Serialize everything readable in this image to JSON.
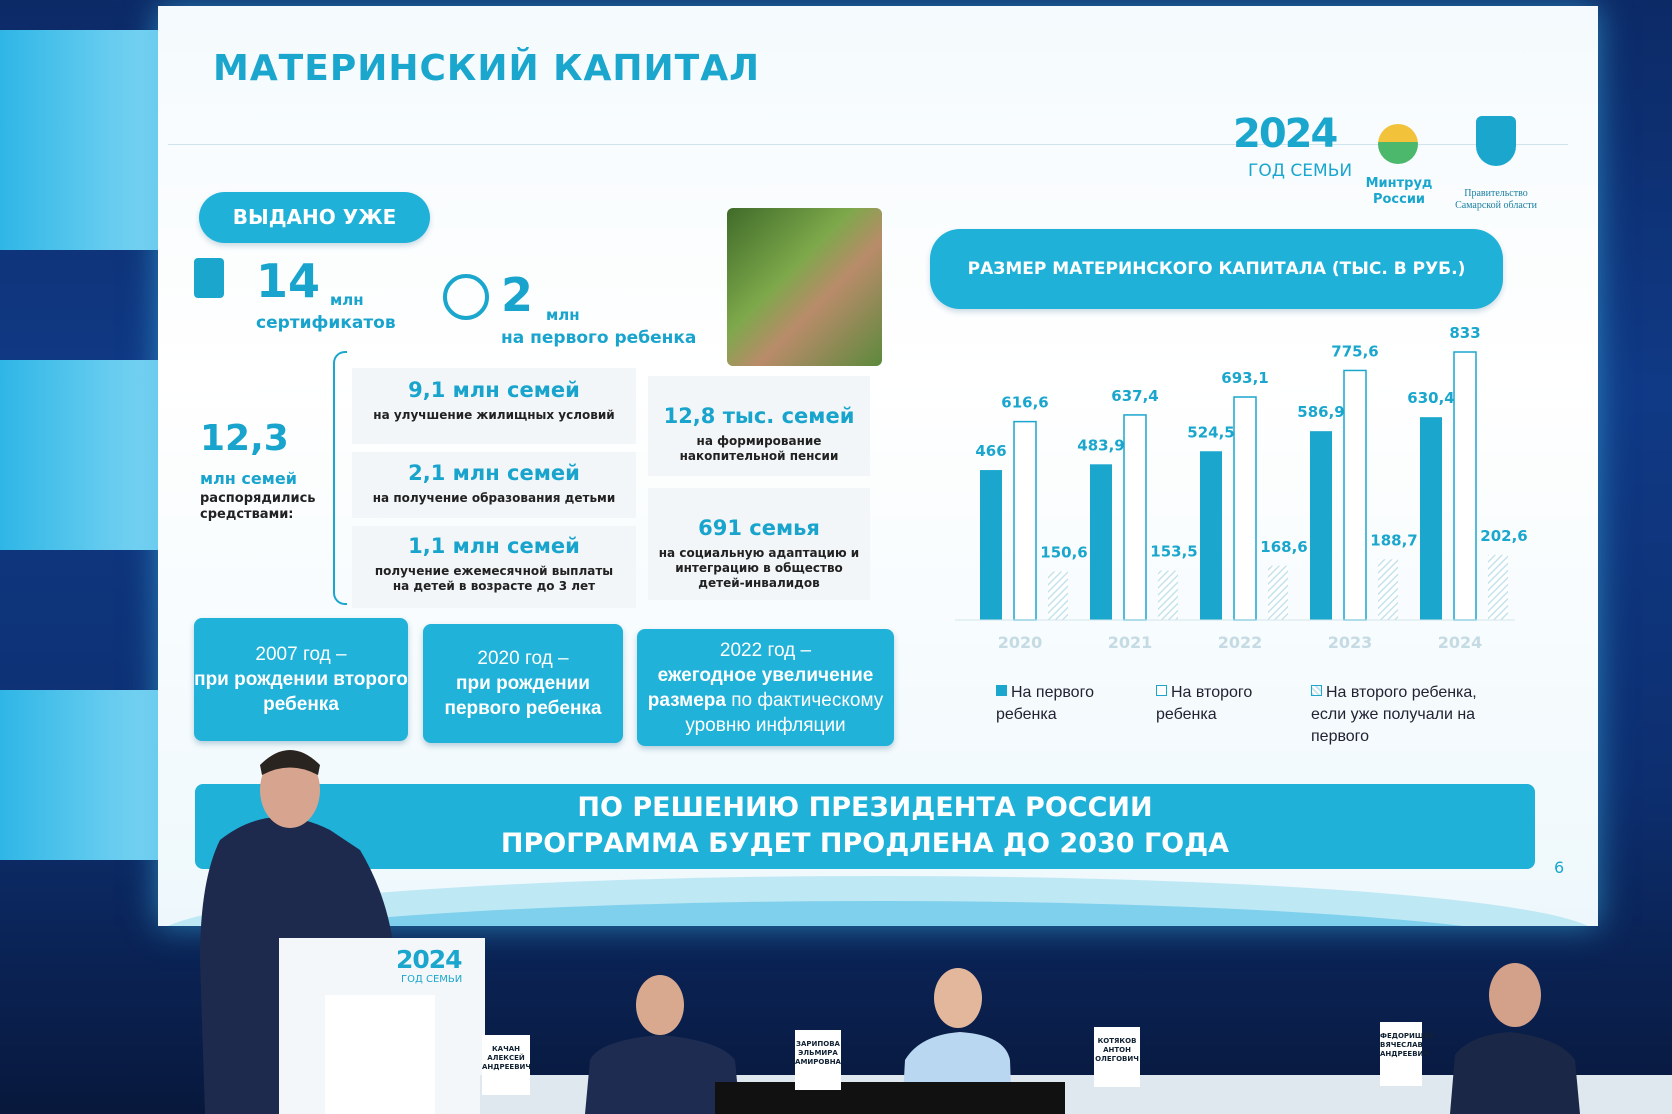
{
  "slide": {
    "title": "МАТЕРИНСКИЙ КАПИТАЛ",
    "logos": {
      "year": "2024",
      "year_caption": "ГОД СЕМЬИ",
      "ministry": "Минтруд России",
      "government": "Правительство Самарской области"
    },
    "issued": {
      "label": "ВЫДАНО УЖЕ",
      "certificates": {
        "number": "14",
        "unit": "млн",
        "caption": "сертификатов"
      },
      "first_child": {
        "number": "2",
        "unit": "млн",
        "caption": "на первого ребенка"
      }
    },
    "families": {
      "number": "12,3",
      "caption": "млн семей",
      "note": "распорядились средствами:"
    },
    "uses": [
      {
        "amount": "9,1 млн семей",
        "purpose": "на улучшение жилищных условий"
      },
      {
        "amount": "2,1 млн семей",
        "purpose": "на получение образования детьми"
      },
      {
        "amount": "1,1 млн семей",
        "purpose": "получение ежемесячной выплаты на детей в возрасте до 3 лет"
      },
      {
        "amount": "12,8 тыс. семей",
        "purpose": "на формирование накопительной пенсии"
      },
      {
        "amount": "691 семья",
        "purpose": "на социальную адаптацию и интеграцию в общество детей-инвалидов"
      }
    ],
    "milestones": [
      {
        "year": "2007 год –",
        "text": "при рождении второго ребенка"
      },
      {
        "year": "2020 год –",
        "text": "при рождении первого ребенка"
      },
      {
        "year": "2022 год –",
        "text_bold": "ежегодное увеличение размера",
        "text": "по фактическому уровню инфляции"
      }
    ],
    "banner": [
      "ПО РЕШЕНИЮ ПРЕЗИДЕНТА РОССИИ",
      "ПРОГРАММА БУДЕТ ПРОДЛЕНА ДО 2030 ГОДА"
    ],
    "page_number": "6"
  },
  "chart_data": {
    "type": "bar",
    "title": "РАЗМЕР МАТЕРИНСКОГО КАПИТАЛА (ТЫС. В РУБ.)",
    "categories": [
      "2020",
      "2021",
      "2022",
      "2023",
      "2024"
    ],
    "series": [
      {
        "name": "На первого ребенка",
        "color": "#1aa6cd",
        "values": [
          466,
          483.9,
          524.5,
          586.9,
          630.4
        ],
        "value_labels": [
          "466",
          "483,9",
          "524,5",
          "586,9",
          "630,4"
        ]
      },
      {
        "name": "На второго ребенка",
        "color": "#ffffff",
        "values": [
          616.6,
          637.4,
          693.1,
          775.6,
          833
        ],
        "value_labels": [
          "616,6",
          "637,4",
          "693,1",
          "775,6",
          "833"
        ]
      },
      {
        "name": "На второго ребенка, если уже получали на первого",
        "color": "#c4e3ee",
        "values": [
          150.6,
          153.5,
          168.6,
          188.7,
          202.6
        ],
        "value_labels": [
          "150,6",
          "153,5",
          "168,6",
          "188,7",
          "202,6"
        ]
      }
    ]
  },
  "stage": {
    "podium": {
      "year": "2024",
      "caption": "ГОД СЕМЬИ"
    },
    "name_plates": [
      "КАЧАН АЛЕКСЕЙ АНДРЕЕВИЧ",
      "ЗАРИПОВА ЭЛЬМИРА АМИРОВНА",
      "КОТЯКОВ АНТОН ОЛЕГОВИЧ",
      "ФЕДОРИЩЕВ ВЯЧЕСЛАВ АНДРЕЕВИЧ"
    ]
  }
}
